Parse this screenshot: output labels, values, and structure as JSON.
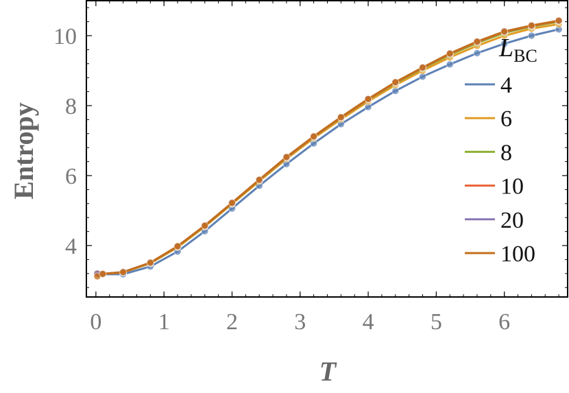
{
  "chart_data": {
    "type": "line",
    "x_label": "T",
    "y_label": "Entropy",
    "legend_title": {
      "main": "L",
      "sub": "BC"
    },
    "x": [
      0.02,
      0.1,
      0.4,
      0.8,
      1.2,
      1.6,
      2.0,
      2.4,
      2.8,
      3.2,
      3.6,
      4.0,
      4.4,
      4.8,
      5.2,
      5.6,
      6.0,
      6.4,
      6.8
    ],
    "series": [
      {
        "name": "4",
        "color": "#5e81b5",
        "values": [
          3.18,
          3.18,
          3.18,
          3.4,
          3.83,
          4.41,
          5.06,
          5.71,
          6.33,
          6.92,
          7.47,
          7.96,
          8.42,
          8.83,
          9.18,
          9.5,
          9.77,
          10.0,
          10.18
        ]
      },
      {
        "name": "6",
        "color": "#e19c24",
        "values": [
          3.2,
          3.19,
          3.23,
          3.49,
          3.95,
          4.54,
          5.19,
          5.84,
          6.48,
          7.07,
          7.61,
          8.12,
          8.59,
          9.0,
          9.38,
          9.71,
          10.0,
          10.2,
          10.33
        ]
      },
      {
        "name": "8",
        "color": "#8fb032",
        "values": [
          3.2,
          3.19,
          3.24,
          3.5,
          3.97,
          4.56,
          5.21,
          5.87,
          6.51,
          7.1,
          7.65,
          8.17,
          8.64,
          9.06,
          9.45,
          9.79,
          10.08,
          10.26,
          10.4
        ]
      },
      {
        "name": "10",
        "color": "#eb6235",
        "values": [
          3.2,
          3.19,
          3.24,
          3.51,
          3.98,
          4.57,
          5.22,
          5.88,
          6.52,
          7.11,
          7.66,
          8.18,
          8.66,
          9.08,
          9.48,
          9.82,
          10.11,
          10.28,
          10.42
        ]
      },
      {
        "name": "20",
        "color": "#8778b3",
        "values": [
          3.2,
          3.19,
          3.24,
          3.51,
          3.98,
          4.57,
          5.22,
          5.88,
          6.53,
          7.12,
          7.67,
          8.19,
          8.67,
          9.09,
          9.49,
          9.83,
          10.12,
          10.29,
          10.43
        ]
      },
      {
        "name": "100",
        "color": "#c56e1a",
        "values": [
          3.12,
          3.19,
          3.24,
          3.51,
          3.98,
          4.57,
          5.22,
          5.88,
          6.53,
          7.12,
          7.67,
          8.19,
          8.67,
          9.09,
          9.49,
          9.83,
          10.12,
          10.29,
          10.43
        ]
      }
    ],
    "xlim": [
      -0.14,
      6.93
    ],
    "ylim": [
      2.53,
      11.0
    ],
    "xticks": [
      0,
      1,
      2,
      3,
      4,
      5,
      6
    ],
    "yticks": [
      4,
      6,
      8,
      10
    ]
  }
}
